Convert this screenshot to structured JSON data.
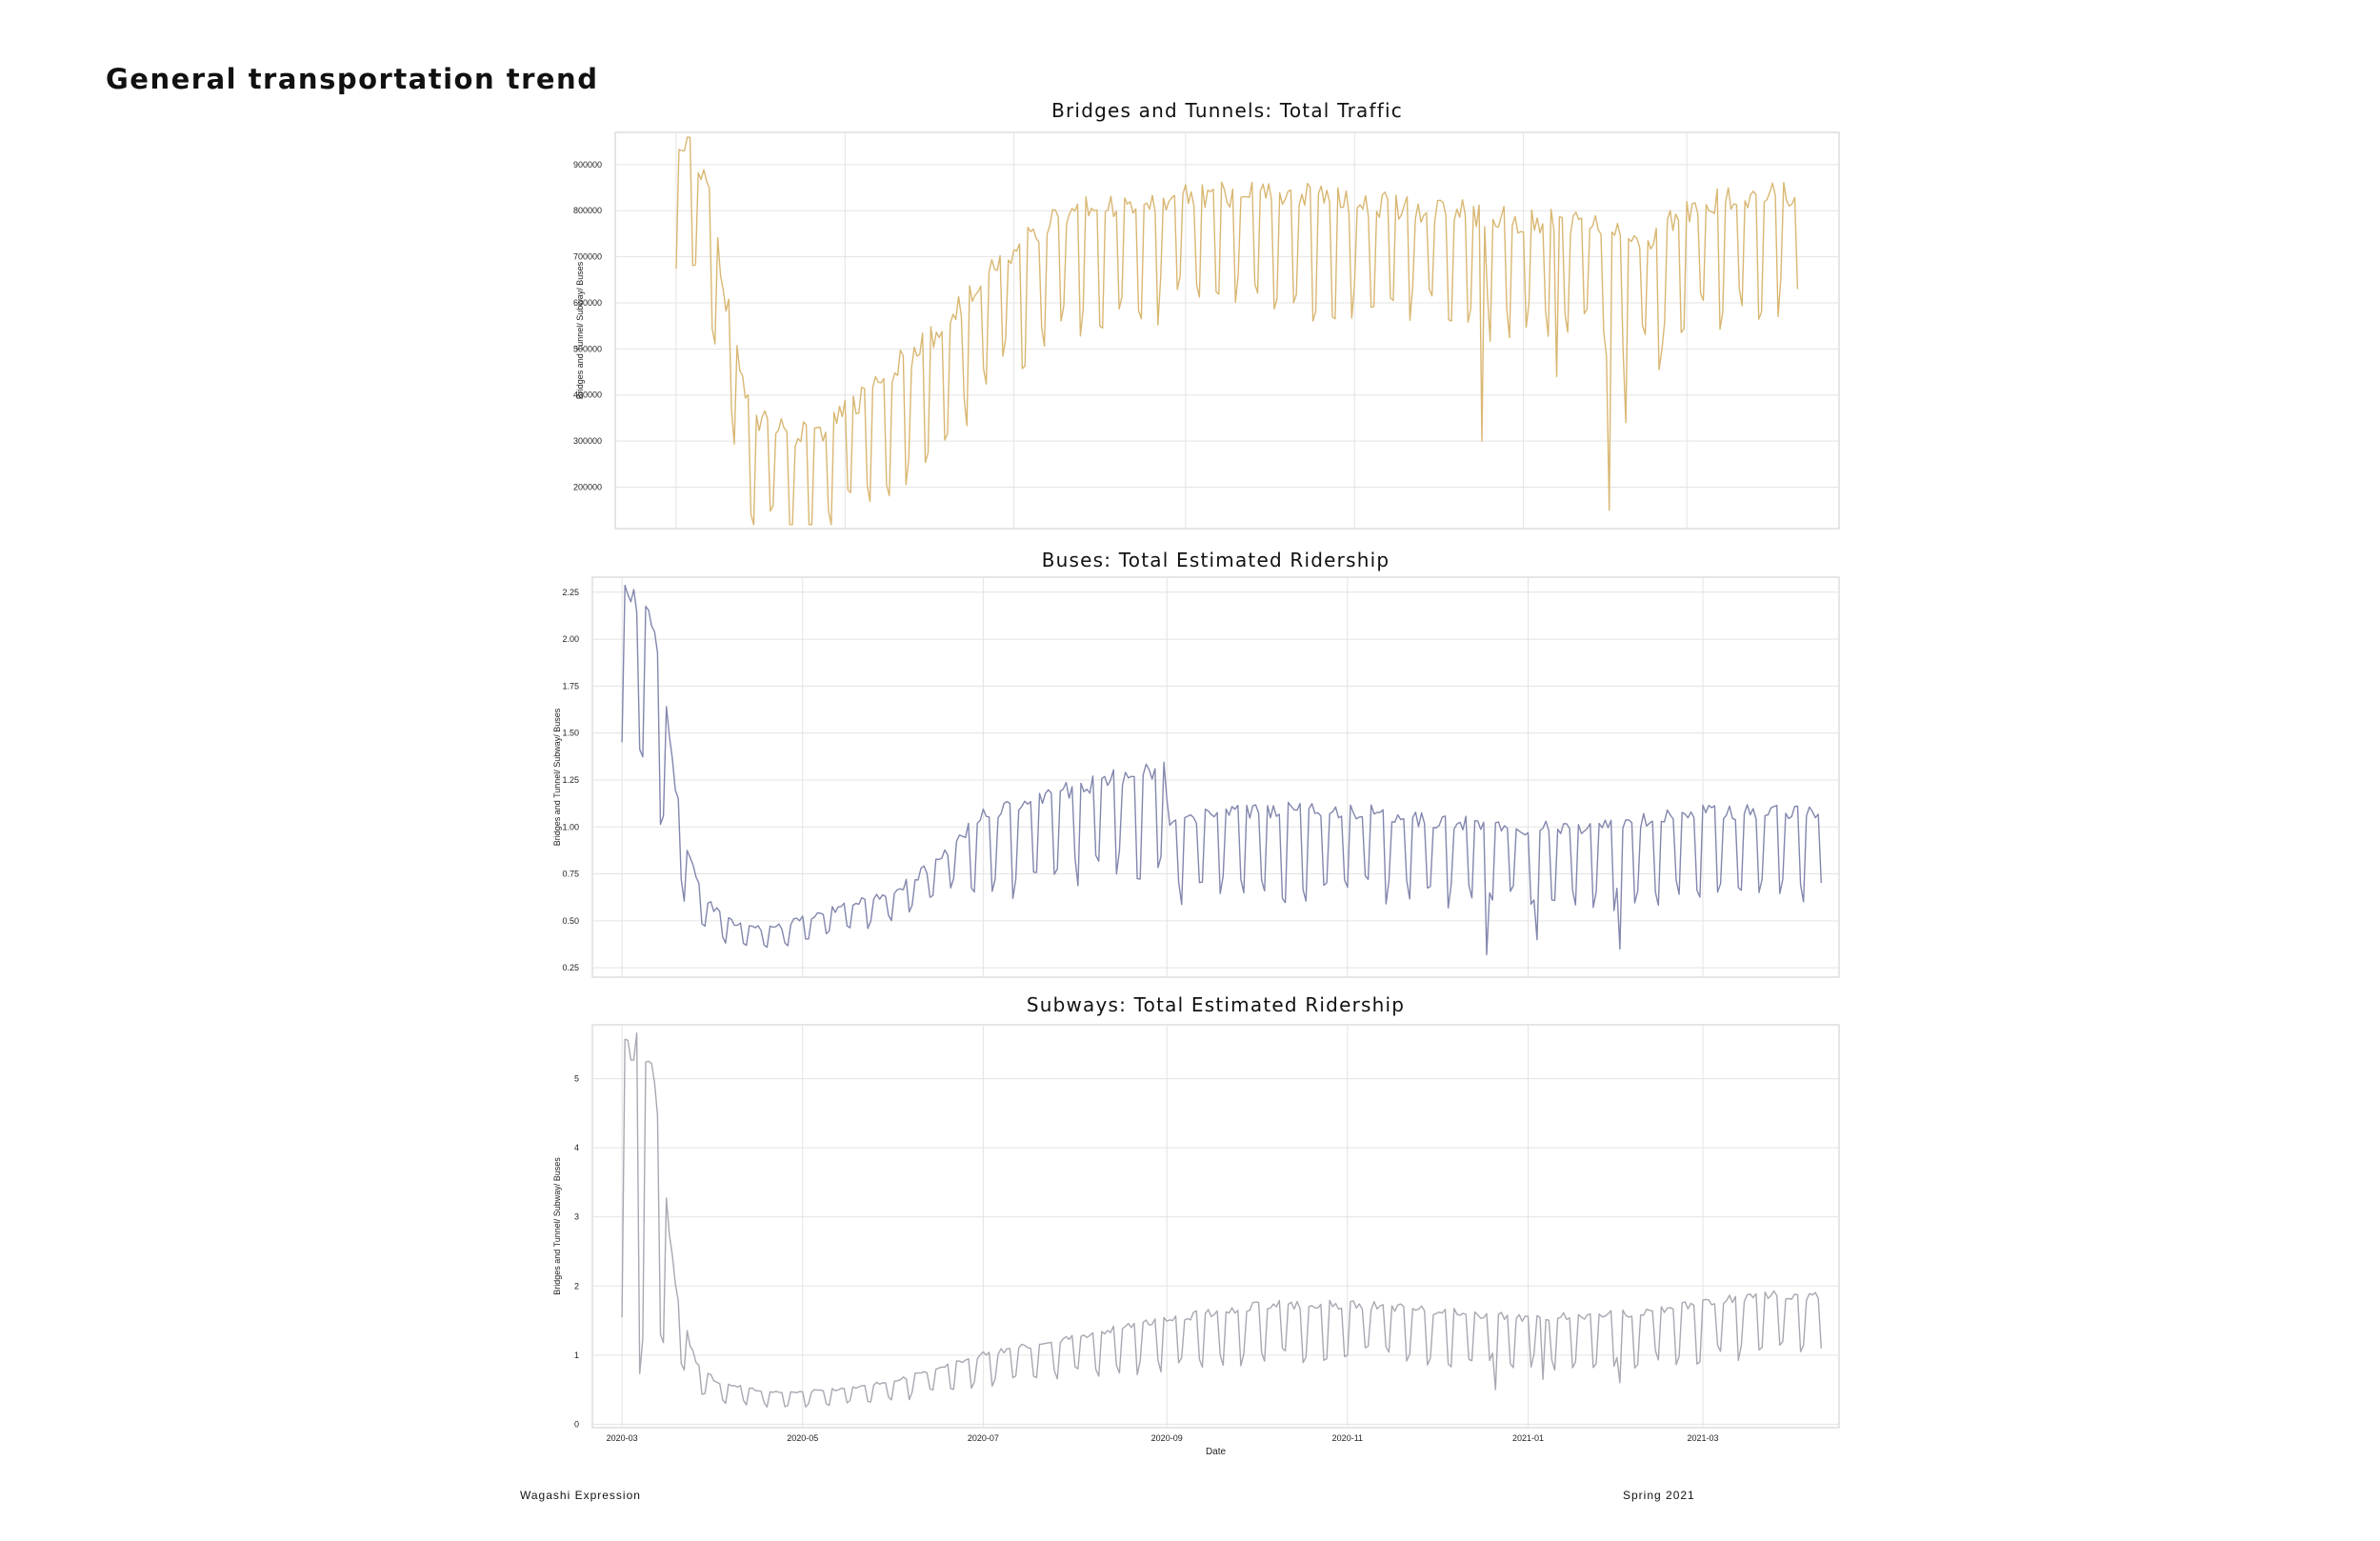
{
  "page": {
    "heading": "General transportation trend",
    "footer_left": "Wagashi Expression",
    "footer_right": "Spring 2021"
  },
  "chart_data": [
    {
      "type": "line",
      "title": "Bridges and Tunnels: Total Traffic",
      "ylabel": "Bridges and Tunnel/ Subway/ Buses",
      "xlabel": "",
      "color": "#d9b772",
      "x_start": "2020-03-01",
      "x_end": "2021-04-10",
      "xlim": [
        "2020-02-08",
        "2021-04-25"
      ],
      "ylim": [
        110000,
        970000
      ],
      "yticks": [
        200000,
        300000,
        400000,
        500000,
        600000,
        700000,
        800000,
        900000
      ],
      "ytick_labels": [
        "200000",
        "300000",
        "400000",
        "500000",
        "600000",
        "700000",
        "800000",
        "900000"
      ],
      "xgrid_dates": [
        "2020-03-01",
        "2020-05-01",
        "2020-07-01",
        "2020-09-01",
        "2020-11-01",
        "2021-01-01",
        "2021-03-01"
      ],
      "show_xtick_labels": false,
      "anchors": [
        [
          "2020-03-01",
          880000
        ],
        [
          "2020-03-06",
          930000
        ],
        [
          "2020-03-10",
          860000
        ],
        [
          "2020-03-14",
          780000
        ],
        [
          "2020-03-18",
          620000
        ],
        [
          "2020-03-22",
          500000
        ],
        [
          "2020-03-26",
          360000
        ],
        [
          "2020-04-02",
          320000
        ],
        [
          "2020-04-12",
          290000
        ],
        [
          "2020-04-22",
          300000
        ],
        [
          "2020-05-01",
          340000
        ],
        [
          "2020-05-15",
          420000
        ],
        [
          "2020-06-01",
          500000
        ],
        [
          "2020-06-15",
          590000
        ],
        [
          "2020-07-01",
          700000
        ],
        [
          "2020-07-15",
          760000
        ],
        [
          "2020-08-01",
          790000
        ],
        [
          "2020-09-01",
          810000
        ],
        [
          "2020-10-01",
          820000
        ],
        [
          "2020-11-01",
          800000
        ],
        [
          "2020-12-01",
          780000
        ],
        [
          "2021-01-01",
          760000
        ],
        [
          "2021-02-01",
          740000
        ],
        [
          "2021-02-15",
          720000
        ],
        [
          "2021-03-01",
          780000
        ],
        [
          "2021-03-20",
          810000
        ],
        [
          "2021-04-10",
          820000
        ]
      ],
      "weekly_dip": [
        [
          20000,
          80000
        ],
        [
          150000,
          260000
        ]
      ],
      "drops": [
        [
          "2020-12-17",
          300000
        ],
        [
          "2021-01-13",
          440000
        ],
        [
          "2021-02-01",
          150000
        ],
        [
          "2021-02-07",
          340000
        ],
        [
          "2021-02-19",
          455000
        ]
      ]
    },
    {
      "type": "line",
      "title": "Buses: Total Estimated Ridership",
      "ylabel": "Bridges and Tunnel/ Subway/ Buses",
      "xlabel": "",
      "color": "#8287ad",
      "x_start": "2020-03-01",
      "x_end": "2021-04-10",
      "xlim": [
        "2020-02-20",
        "2021-04-16"
      ],
      "ylim": [
        0.2,
        2.33
      ],
      "yticks": [
        0.25,
        0.5,
        0.75,
        1.0,
        1.25,
        1.5,
        1.75,
        2.0,
        2.25
      ],
      "ytick_labels": [
        "0.25",
        "0.50",
        "0.75",
        "1.00",
        "1.25",
        "1.50",
        "1.75",
        "2.00",
        "2.25"
      ],
      "xgrid_dates": [
        "2020-03-01",
        "2020-05-01",
        "2020-07-01",
        "2020-09-01",
        "2020-11-01",
        "2021-01-01",
        "2021-03-01"
      ],
      "show_xtick_labels": false,
      "anchors": [
        [
          "2020-03-01",
          2.2
        ],
        [
          "2020-03-12",
          2.1
        ],
        [
          "2020-03-18",
          1.3
        ],
        [
          "2020-03-22",
          0.95
        ],
        [
          "2020-03-28",
          0.62
        ],
        [
          "2020-04-05",
          0.5
        ],
        [
          "2020-04-20",
          0.45
        ],
        [
          "2020-05-05",
          0.52
        ],
        [
          "2020-06-01",
          0.65
        ],
        [
          "2020-06-15",
          0.8
        ],
        [
          "2020-07-01",
          1.05
        ],
        [
          "2020-07-20",
          1.15
        ],
        [
          "2020-08-15",
          1.25
        ],
        [
          "2020-08-31",
          1.3
        ],
        [
          "2020-09-02",
          1.02
        ],
        [
          "2020-10-01",
          1.08
        ],
        [
          "2020-11-01",
          1.08
        ],
        [
          "2020-12-01",
          1.02
        ],
        [
          "2021-01-01",
          0.98
        ],
        [
          "2021-02-01",
          1.0
        ],
        [
          "2021-03-01",
          1.07
        ],
        [
          "2021-04-10",
          1.06
        ]
      ],
      "weekly_dip": [
        [
          0.02,
          0.1
        ],
        [
          0.3,
          0.45
        ]
      ],
      "drops": [
        [
          "2020-12-18",
          0.32
        ],
        [
          "2021-01-04",
          0.4
        ],
        [
          "2021-02-01",
          0.35
        ]
      ]
    },
    {
      "type": "line",
      "title": "Subways: Total Estimated Ridership",
      "ylabel": "Bridges and Tunnel/ Subway/ Buses",
      "xlabel": "Date",
      "color": "#a8a8b2",
      "x_start": "2020-03-01",
      "x_end": "2021-04-10",
      "xlim": [
        "2020-02-20",
        "2021-04-16"
      ],
      "ylim": [
        -0.05,
        5.78
      ],
      "yticks": [
        0,
        1,
        2,
        3,
        4,
        5
      ],
      "ytick_labels": [
        "0",
        "1",
        "2",
        "3",
        "4",
        "5"
      ],
      "xgrid_dates": [
        "2020-03-01",
        "2020-05-01",
        "2020-07-01",
        "2020-09-01",
        "2020-11-01",
        "2021-01-01",
        "2021-03-01"
      ],
      "xtick_labels": [
        "2020-03",
        "2020-05",
        "2020-07",
        "2020-09",
        "2020-11",
        "2021-01",
        "2021-03"
      ],
      "show_xtick_labels": true,
      "anchors": [
        [
          "2020-03-01",
          5.3
        ],
        [
          "2020-03-08",
          5.5
        ],
        [
          "2020-03-12",
          4.9
        ],
        [
          "2020-03-16",
          3.2
        ],
        [
          "2020-03-20",
          1.7
        ],
        [
          "2020-03-26",
          0.9
        ],
        [
          "2020-04-02",
          0.6
        ],
        [
          "2020-04-20",
          0.45
        ],
        [
          "2020-05-15",
          0.5
        ],
        [
          "2020-06-01",
          0.62
        ],
        [
          "2020-06-15",
          0.8
        ],
        [
          "2020-07-01",
          1.0
        ],
        [
          "2020-08-01",
          1.25
        ],
        [
          "2020-09-01",
          1.5
        ],
        [
          "2020-10-01",
          1.7
        ],
        [
          "2020-11-01",
          1.72
        ],
        [
          "2020-12-01",
          1.62
        ],
        [
          "2021-01-01",
          1.52
        ],
        [
          "2021-02-01",
          1.58
        ],
        [
          "2021-03-01",
          1.72
        ],
        [
          "2021-03-20",
          1.85
        ],
        [
          "2021-04-10",
          1.85
        ]
      ],
      "weekly_dip": [
        [
          0.02,
          0.1
        ],
        [
          0.6,
          0.9
        ]
      ],
      "drops": [
        [
          "2020-12-21",
          0.5
        ],
        [
          "2021-01-06",
          0.65
        ],
        [
          "2021-02-01",
          0.6
        ]
      ]
    }
  ]
}
